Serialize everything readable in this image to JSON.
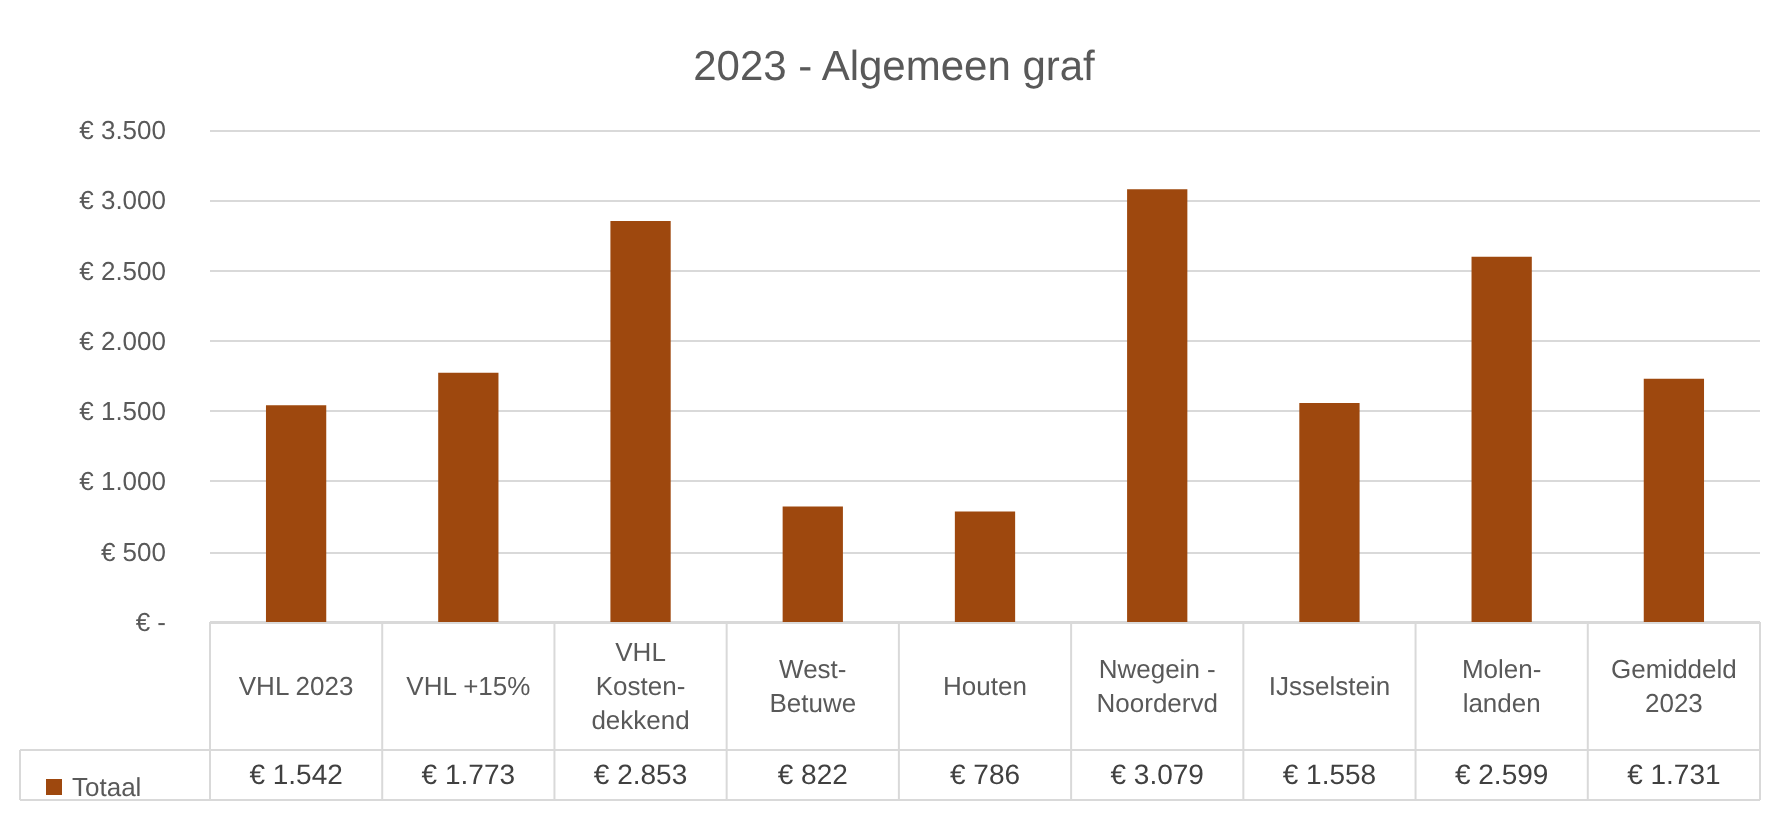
{
  "chart_data": {
    "type": "bar",
    "title": "2023 - Algemeen graf",
    "categories": [
      "VHL 2023",
      "VHL +15%",
      "VHL Kosten-dekkend",
      "West-Betuwe",
      "Houten",
      "Nwegein - Noordervd",
      "IJsselstein",
      "Molen-landen",
      "Gemiddeld 2023"
    ],
    "series": [
      {
        "name": "Totaal",
        "color": "#9e480e",
        "values": [
          1542,
          1773,
          2853,
          822,
          786,
          3079,
          1558,
          2599,
          1731
        ],
        "value_labels": [
          "€ 1.542",
          "€ 1.773",
          "€ 2.853",
          "€ 822",
          "€ 786",
          "€ 3.079",
          "€ 1.558",
          "€ 2.599",
          "€ 1.731"
        ]
      }
    ],
    "ylim": [
      0,
      3500
    ],
    "yticks": [
      {
        "value": 0,
        "label": "€ -"
      },
      {
        "value": 500,
        "label": "€ 500"
      },
      {
        "value": 1000,
        "label": "€ 1.000"
      },
      {
        "value": 1500,
        "label": "€ 1.500"
      },
      {
        "value": 2000,
        "label": "€ 2.000"
      },
      {
        "value": 2500,
        "label": "€ 2.500"
      },
      {
        "value": 3000,
        "label": "€ 3.000"
      },
      {
        "value": 3500,
        "label": "€ 3.500"
      }
    ],
    "grid": "y",
    "legend": "bottom left"
  }
}
